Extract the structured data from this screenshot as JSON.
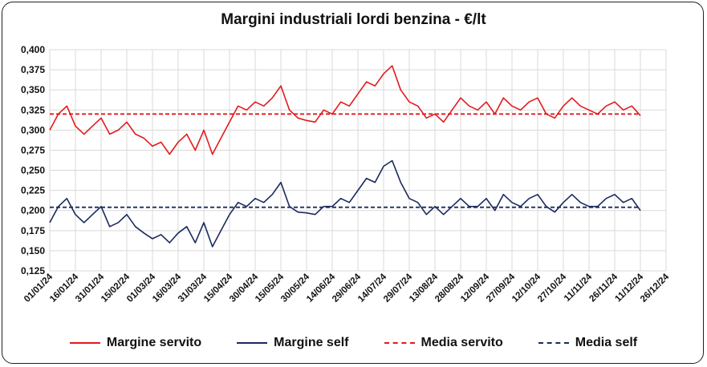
{
  "chart_data": {
    "type": "line",
    "title": "Margini industriali lordi benzina - €/lt",
    "xlabel": "",
    "ylabel": "",
    "ylim": [
      0.125,
      0.4
    ],
    "y_ticks": [
      "0,125",
      "0,150",
      "0,175",
      "0,200",
      "0,225",
      "0,250",
      "0,275",
      "0,300",
      "0,325",
      "0,350",
      "0,375",
      "0,400"
    ],
    "x_ticks": [
      "01/01/24",
      "16/01/24",
      "31/01/24",
      "15/02/24",
      "01/03/24",
      "16/03/24",
      "31/03/24",
      "15/04/24",
      "30/04/24",
      "15/05/24",
      "30/05/24",
      "14/06/24",
      "29/06/24",
      "14/07/24",
      "29/07/24",
      "13/08/24",
      "28/08/24",
      "12/09/24",
      "27/09/24",
      "12/10/24",
      "27/10/24",
      "11/11/24",
      "26/11/24",
      "11/12/24",
      "26/12/24"
    ],
    "grid": true,
    "legend_position": "bottom",
    "series": [
      {
        "name": "Margine servito",
        "color": "#e31a1c",
        "style": "solid",
        "x": [
          0,
          5,
          10,
          15,
          20,
          25,
          30,
          35,
          40,
          45,
          50,
          55,
          60,
          65,
          70,
          75,
          80,
          85,
          90,
          95,
          100,
          105,
          110,
          115,
          120,
          125,
          130,
          135,
          140,
          145,
          150,
          155,
          160,
          165,
          170,
          175,
          180,
          185,
          190,
          195,
          200,
          205,
          210,
          215,
          220,
          225,
          230,
          235,
          240,
          245,
          250,
          255,
          260,
          265,
          270,
          275,
          280,
          285,
          290,
          295,
          300,
          305,
          310,
          315,
          320,
          325,
          330,
          335,
          340,
          345
        ],
        "values": [
          0.3,
          0.32,
          0.33,
          0.305,
          0.295,
          0.305,
          0.315,
          0.295,
          0.3,
          0.31,
          0.295,
          0.29,
          0.28,
          0.285,
          0.27,
          0.285,
          0.295,
          0.275,
          0.3,
          0.27,
          0.29,
          0.31,
          0.33,
          0.325,
          0.335,
          0.33,
          0.34,
          0.355,
          0.325,
          0.315,
          0.312,
          0.31,
          0.325,
          0.32,
          0.335,
          0.33,
          0.345,
          0.36,
          0.355,
          0.37,
          0.38,
          0.35,
          0.335,
          0.33,
          0.315,
          0.32,
          0.31,
          0.325,
          0.34,
          0.33,
          0.325,
          0.335,
          0.32,
          0.34,
          0.33,
          0.325,
          0.335,
          0.34,
          0.32,
          0.315,
          0.33,
          0.34,
          0.33,
          0.325,
          0.32,
          0.33,
          0.335,
          0.325,
          0.33,
          0.318
        ]
      },
      {
        "name": "Margine self",
        "color": "#1a2a5e",
        "style": "solid",
        "x": [
          0,
          5,
          10,
          15,
          20,
          25,
          30,
          35,
          40,
          45,
          50,
          55,
          60,
          65,
          70,
          75,
          80,
          85,
          90,
          95,
          100,
          105,
          110,
          115,
          120,
          125,
          130,
          135,
          140,
          145,
          150,
          155,
          160,
          165,
          170,
          175,
          180,
          185,
          190,
          195,
          200,
          205,
          210,
          215,
          220,
          225,
          230,
          235,
          240,
          245,
          250,
          255,
          260,
          265,
          270,
          275,
          280,
          285,
          290,
          295,
          300,
          305,
          310,
          315,
          320,
          325,
          330,
          335,
          340,
          345
        ],
        "values": [
          0.185,
          0.205,
          0.215,
          0.195,
          0.185,
          0.195,
          0.205,
          0.18,
          0.185,
          0.195,
          0.18,
          0.172,
          0.165,
          0.17,
          0.16,
          0.172,
          0.18,
          0.16,
          0.185,
          0.155,
          0.175,
          0.195,
          0.21,
          0.205,
          0.215,
          0.21,
          0.22,
          0.235,
          0.205,
          0.198,
          0.197,
          0.195,
          0.205,
          0.205,
          0.215,
          0.21,
          0.225,
          0.24,
          0.235,
          0.255,
          0.262,
          0.235,
          0.215,
          0.21,
          0.195,
          0.205,
          0.195,
          0.205,
          0.215,
          0.205,
          0.205,
          0.215,
          0.2,
          0.22,
          0.21,
          0.205,
          0.215,
          0.22,
          0.205,
          0.198,
          0.21,
          0.22,
          0.21,
          0.205,
          0.205,
          0.215,
          0.22,
          0.21,
          0.215,
          0.2
        ]
      },
      {
        "name": "Media servito",
        "color": "#e31a1c",
        "style": "dashed",
        "x": [
          0,
          345
        ],
        "values": [
          0.32,
          0.32
        ]
      },
      {
        "name": "Media self",
        "color": "#1a2a5e",
        "style": "dashed",
        "x": [
          0,
          345
        ],
        "values": [
          0.204,
          0.204
        ]
      }
    ]
  }
}
